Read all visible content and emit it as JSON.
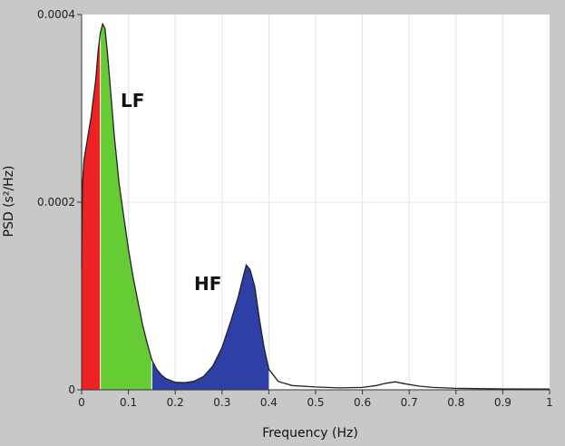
{
  "chart_data": {
    "type": "area",
    "title": "",
    "xlabel": "Frequency (Hz)",
    "ylabel": "PSD (s²/Hz)",
    "xlim": [
      0,
      1
    ],
    "ylim": [
      0,
      0.0004
    ],
    "x_ticks": [
      "0",
      "0.1",
      "0.2",
      "0.3",
      "0.4",
      "0.5",
      "0.6",
      "0.7",
      "0.8",
      "0.9",
      "1"
    ],
    "y_ticks": [
      "0",
      "0.0002",
      "0.0004"
    ],
    "grid": true,
    "series": [
      {
        "points": [
          [
            0.0,
            0.00013
          ],
          [
            0.002,
            0.00022
          ],
          [
            0.005,
            0.000245
          ],
          [
            0.01,
            0.00026
          ],
          [
            0.02,
            0.00029
          ],
          [
            0.03,
            0.00033
          ],
          [
            0.035,
            0.00036
          ],
          [
            0.04,
            0.00038
          ],
          [
            0.045,
            0.00039
          ],
          [
            0.05,
            0.000385
          ],
          [
            0.055,
            0.00036
          ],
          [
            0.06,
            0.00033
          ],
          [
            0.07,
            0.00027
          ],
          [
            0.08,
            0.00022
          ],
          [
            0.09,
            0.000185
          ],
          [
            0.1,
            0.00015
          ],
          [
            0.11,
            0.00012
          ],
          [
            0.12,
            9.5e-05
          ],
          [
            0.13,
            7e-05
          ],
          [
            0.14,
            5e-05
          ],
          [
            0.15,
            3.2e-05
          ],
          [
            0.16,
            2.2e-05
          ],
          [
            0.17,
            1.6e-05
          ],
          [
            0.18,
            1.2e-05
          ],
          [
            0.2,
            8e-06
          ],
          [
            0.22,
            7.5e-06
          ],
          [
            0.24,
            9e-06
          ],
          [
            0.26,
            1.4e-05
          ],
          [
            0.28,
            2.5e-05
          ],
          [
            0.3,
            4.5e-05
          ],
          [
            0.32,
            7.5e-05
          ],
          [
            0.335,
            0.0001
          ],
          [
            0.345,
            0.00012
          ],
          [
            0.352,
            0.000133
          ],
          [
            0.36,
            0.000128
          ],
          [
            0.37,
            0.00011
          ],
          [
            0.38,
            7.5e-05
          ],
          [
            0.39,
            4.5e-05
          ],
          [
            0.4,
            2.2e-05
          ],
          [
            0.42,
            9e-06
          ],
          [
            0.45,
            4.5e-06
          ],
          [
            0.5,
            3e-06
          ],
          [
            0.55,
            2e-06
          ],
          [
            0.6,
            2.5e-06
          ],
          [
            0.63,
            4.5e-06
          ],
          [
            0.65,
            7e-06
          ],
          [
            0.67,
            8.5e-06
          ],
          [
            0.69,
            6.5e-06
          ],
          [
            0.72,
            4e-06
          ],
          [
            0.75,
            2.5e-06
          ],
          [
            0.8,
            1.5e-06
          ],
          [
            0.9,
            1e-06
          ],
          [
            1.0,
            8e-07
          ]
        ]
      }
    ],
    "bands": [
      {
        "label": "",
        "from": 0.0,
        "to": 0.04,
        "color": "#ee2222"
      },
      {
        "label": "LF",
        "from": 0.04,
        "to": 0.15,
        "color": "#66cc33"
      },
      {
        "label": "HF",
        "from": 0.15,
        "to": 0.4,
        "color": "#2e3fa6"
      }
    ],
    "annotations": [
      "LF",
      "HF"
    ]
  },
  "colors": {
    "frame": "#c8c8c8",
    "plot_bg": "#ffffff",
    "grid": "#e4e4e4",
    "line": "#222222"
  }
}
